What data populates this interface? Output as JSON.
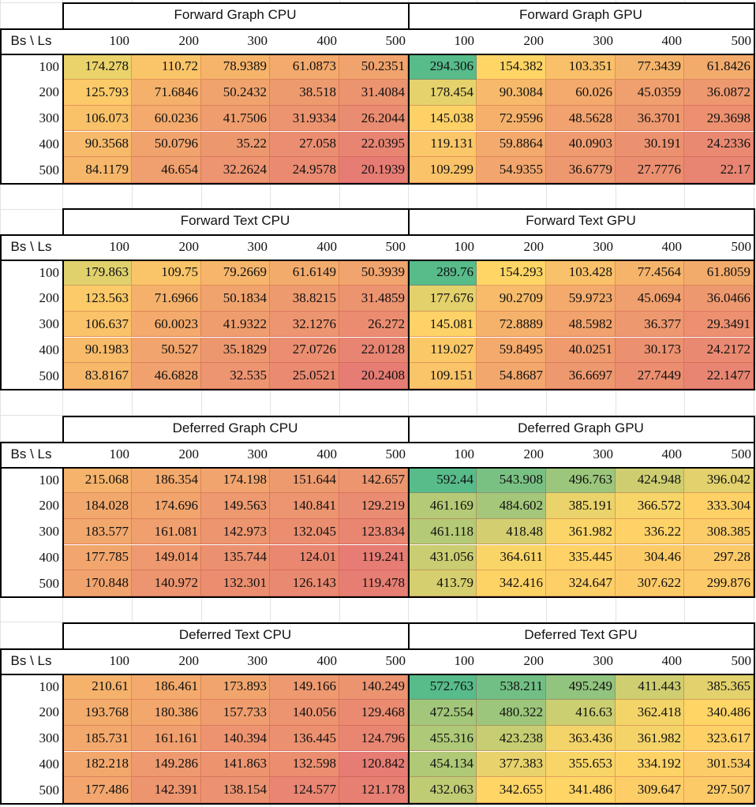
{
  "corner_label": "Bs \\ Ls",
  "colors": {
    "low": "#e67c73",
    "mid": "#ffd666",
    "high": "#57bb8a"
  },
  "chart_data": [
    {
      "type": "heatmap",
      "row_header": "Bs",
      "col_header": "Ls",
      "rows": [
        "100",
        "200",
        "300",
        "400",
        "500"
      ],
      "cols": [
        "100",
        "200",
        "300",
        "400",
        "500",
        "100",
        "200",
        "300",
        "400",
        "500"
      ],
      "groups": [
        {
          "title": "Forward Graph CPU",
          "values": [
            [
              "174.278",
              "110.72",
              "78.9389",
              "61.0873",
              "50.2351"
            ],
            [
              "125.793",
              "71.6846",
              "50.2432",
              "38.518",
              "31.4084"
            ],
            [
              "106.073",
              "60.0236",
              "41.7506",
              "31.9334",
              "26.2044"
            ],
            [
              "90.3568",
              "50.0796",
              "35.22",
              "27.058",
              "22.0395"
            ],
            [
              "84.1179",
              "46.654",
              "32.2624",
              "24.9578",
              "20.1939"
            ]
          ]
        },
        {
          "title": "Forward Graph GPU",
          "values": [
            [
              "294.306",
              "154.382",
              "103.351",
              "77.3439",
              "61.8426"
            ],
            [
              "178.454",
              "90.3084",
              "60.026",
              "45.0359",
              "36.0872"
            ],
            [
              "145.038",
              "72.9596",
              "48.5628",
              "36.3701",
              "29.3698"
            ],
            [
              "119.131",
              "59.8864",
              "40.0903",
              "30.191",
              "24.2336"
            ],
            [
              "109.299",
              "54.9355",
              "36.6779",
              "27.7776",
              "22.17"
            ]
          ]
        }
      ]
    },
    {
      "type": "heatmap",
      "row_header": "Bs",
      "col_header": "Ls",
      "rows": [
        "100",
        "200",
        "300",
        "400",
        "500"
      ],
      "cols": [
        "100",
        "200",
        "300",
        "400",
        "500",
        "100",
        "200",
        "300",
        "400",
        "500"
      ],
      "groups": [
        {
          "title": "Forward Text CPU",
          "values": [
            [
              "179.863",
              "109.75",
              "79.2669",
              "61.6149",
              "50.3939"
            ],
            [
              "123.563",
              "71.6966",
              "50.1834",
              "38.8215",
              "31.4859"
            ],
            [
              "106.637",
              "60.0023",
              "41.9322",
              "32.1276",
              "26.272"
            ],
            [
              "90.1983",
              "50.527",
              "35.1829",
              "27.0726",
              "22.0128"
            ],
            [
              "83.8167",
              "46.6828",
              "32.535",
              "25.0521",
              "20.2408"
            ]
          ]
        },
        {
          "title": "Forward Text GPU",
          "values": [
            [
              "289.76",
              "154.293",
              "103.428",
              "77.4564",
              "61.8059"
            ],
            [
              "177.676",
              "90.2709",
              "59.9723",
              "45.0694",
              "36.0466"
            ],
            [
              "145.081",
              "72.8889",
              "48.5982",
              "36.377",
              "29.3491"
            ],
            [
              "119.027",
              "59.8495",
              "40.0251",
              "30.173",
              "24.2172"
            ],
            [
              "109.151",
              "54.8687",
              "36.6697",
              "27.7449",
              "22.1477"
            ]
          ]
        }
      ]
    },
    {
      "type": "heatmap",
      "row_header": "Bs",
      "col_header": "Ls",
      "rows": [
        "100",
        "200",
        "300",
        "400",
        "500"
      ],
      "cols": [
        "100",
        "200",
        "300",
        "400",
        "500",
        "100",
        "200",
        "300",
        "400",
        "500"
      ],
      "groups": [
        {
          "title": "Deferred Graph CPU",
          "values": [
            [
              "215.068",
              "186.354",
              "174.198",
              "151.644",
              "142.657"
            ],
            [
              "184.028",
              "174.696",
              "149.563",
              "140.841",
              "129.219"
            ],
            [
              "183.577",
              "161.081",
              "142.973",
              "132.045",
              "123.834"
            ],
            [
              "177.785",
              "149.014",
              "135.744",
              "124.01",
              "119.241"
            ],
            [
              "170.848",
              "140.972",
              "132.301",
              "126.143",
              "119.478"
            ]
          ]
        },
        {
          "title": "Deferred Graph GPU",
          "values": [
            [
              "592.44",
              "543.908",
              "496.763",
              "424.948",
              "396.042"
            ],
            [
              "461.169",
              "484.602",
              "385.191",
              "366.572",
              "333.304"
            ],
            [
              "461.118",
              "418.48",
              "361.982",
              "336.22",
              "308.385"
            ],
            [
              "431.056",
              "364.611",
              "335.445",
              "304.46",
              "297.28"
            ],
            [
              "413.79",
              "342.416",
              "324.647",
              "307.622",
              "299.876"
            ]
          ]
        }
      ]
    },
    {
      "type": "heatmap",
      "row_header": "Bs",
      "col_header": "Ls",
      "rows": [
        "100",
        "200",
        "300",
        "400",
        "500"
      ],
      "cols": [
        "100",
        "200",
        "300",
        "400",
        "500",
        "100",
        "200",
        "300",
        "400",
        "500"
      ],
      "groups": [
        {
          "title": "Deferred Text CPU",
          "values": [
            [
              "210.61",
              "186.461",
              "173.893",
              "149.166",
              "140.249"
            ],
            [
              "193.768",
              "180.386",
              "157.733",
              "140.056",
              "129.468"
            ],
            [
              "185.731",
              "161.161",
              "140.394",
              "136.445",
              "124.796"
            ],
            [
              "182.218",
              "149.286",
              "141.863",
              "132.598",
              "120.842"
            ],
            [
              "177.486",
              "142.391",
              "138.154",
              "124.577",
              "121.178"
            ]
          ]
        },
        {
          "title": "Deferred Text GPU",
          "values": [
            [
              "572.763",
              "538.211",
              "495.249",
              "411.443",
              "385.365"
            ],
            [
              "472.554",
              "480.322",
              "416.63",
              "362.418",
              "340.486"
            ],
            [
              "455.316",
              "423.238",
              "363.436",
              "361.982",
              "323.617"
            ],
            [
              "454.134",
              "377.383",
              "355.653",
              "334.192",
              "301.534"
            ],
            [
              "432.063",
              "342.655",
              "341.486",
              "309.647",
              "297.507"
            ]
          ]
        }
      ]
    }
  ]
}
